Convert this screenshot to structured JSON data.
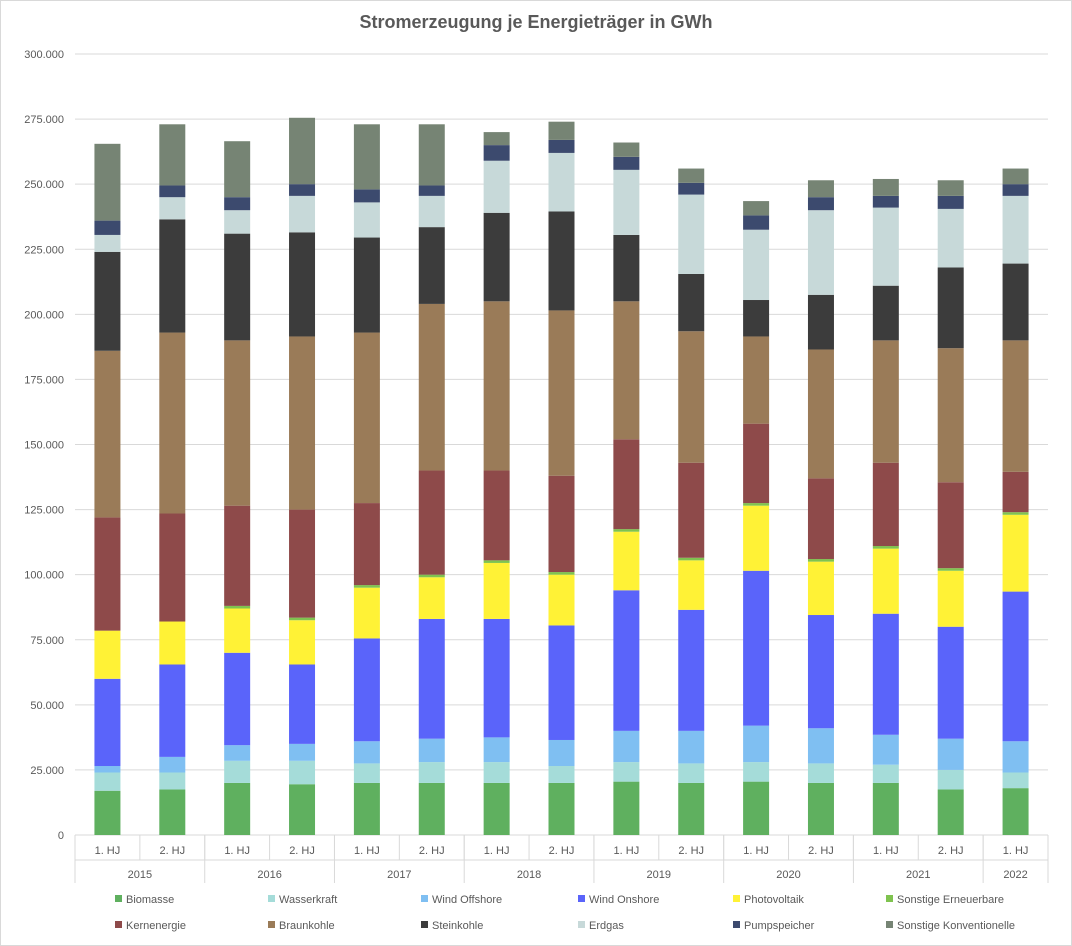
{
  "chart_data": {
    "type": "bar",
    "stacked": true,
    "title": "Stromerzeugung  je Energieträger in GWh",
    "xlabel": "",
    "ylabel": "",
    "ylim": [
      0,
      300000
    ],
    "y_ticks": [
      "0",
      "25.000",
      "50.000",
      "75.000",
      "100.000",
      "125.000",
      "150.000",
      "175.000",
      "200.000",
      "225.000",
      "250.000",
      "275.000",
      "300.000"
    ],
    "grid": true,
    "legend_position": "bottom",
    "categories": [
      "1. HJ",
      "2. HJ",
      "1. HJ",
      "2. HJ",
      "1. HJ",
      "2. HJ",
      "1. HJ",
      "2. HJ",
      "1. HJ",
      "2. HJ",
      "1. HJ",
      "2. HJ",
      "1. HJ",
      "2. HJ",
      "1. HJ"
    ],
    "groups": [
      {
        "label": "2015",
        "count": 2
      },
      {
        "label": "2016",
        "count": 2
      },
      {
        "label": "2017",
        "count": 2
      },
      {
        "label": "2018",
        "count": 2
      },
      {
        "label": "2019",
        "count": 2
      },
      {
        "label": "2020",
        "count": 2
      },
      {
        "label": "2021",
        "count": 2
      },
      {
        "label": "2022",
        "count": 1
      }
    ],
    "series": [
      {
        "name": "Biomasse",
        "color": "#5fb05f",
        "values": [
          17000,
          17500,
          20000,
          19500,
          20000,
          20000,
          20000,
          20000,
          20500,
          20000,
          20500,
          20000,
          20000,
          17500,
          18000
        ]
      },
      {
        "name": "Wasserkraft",
        "color": "#a5dcd9",
        "values": [
          7000,
          6500,
          8500,
          9000,
          7500,
          8000,
          8000,
          6500,
          7500,
          7500,
          7500,
          7500,
          7000,
          7500,
          6000
        ]
      },
      {
        "name": "Wind Offshore",
        "color": "#7fbff2",
        "values": [
          2500,
          6000,
          6000,
          6500,
          8500,
          9000,
          9500,
          10000,
          12000,
          12500,
          14000,
          13500,
          11500,
          12000,
          12000
        ]
      },
      {
        "name": "Wind Onshore",
        "color": "#5a64fa",
        "values": [
          33500,
          35500,
          35500,
          30500,
          39500,
          46000,
          45500,
          44000,
          54000,
          46500,
          59500,
          43500,
          46500,
          43000,
          57500
        ]
      },
      {
        "name": "Photovoltaik",
        "color": "#fff236",
        "values": [
          18500,
          16500,
          17000,
          17000,
          19500,
          16000,
          21500,
          19500,
          22500,
          19000,
          25000,
          20500,
          25000,
          21500,
          29500
        ]
      },
      {
        "name": "Sonstige Erneuerbare",
        "color": "#7fc34f",
        "values": [
          0,
          0,
          1000,
          1000,
          1000,
          1000,
          1000,
          1000,
          1000,
          1000,
          1000,
          1000,
          1000,
          1000,
          1000
        ]
      },
      {
        "name": "Kernenergie",
        "color": "#8e4a4a",
        "values": [
          43500,
          41500,
          38500,
          41500,
          31500,
          40000,
          34500,
          37000,
          34500,
          36500,
          30500,
          31000,
          32000,
          33000,
          15500
        ]
      },
      {
        "name": "Braunkohle",
        "color": "#9a7b58",
        "values": [
          64000,
          69500,
          63500,
          66500,
          65500,
          64000,
          65000,
          63500,
          53000,
          50500,
          33500,
          49500,
          47000,
          51500,
          50500
        ]
      },
      {
        "name": "Steinkohle",
        "color": "#3c3c3c",
        "values": [
          38000,
          43500,
          41000,
          40000,
          36500,
          29500,
          34000,
          38000,
          25500,
          22000,
          14000,
          21000,
          21000,
          31000,
          29500
        ]
      },
      {
        "name": "Erdgas",
        "color": "#c7d9d9",
        "values": [
          6500,
          8500,
          9000,
          14000,
          13500,
          12000,
          20000,
          22500,
          25000,
          30500,
          27000,
          32500,
          30000,
          22500,
          26000
        ]
      },
      {
        "name": "Pumpspeicher",
        "color": "#3c4a6e",
        "values": [
          5500,
          4500,
          5000,
          4500,
          5000,
          4000,
          6000,
          5000,
          5000,
          4500,
          5500,
          5000,
          4500,
          5000,
          4500
        ]
      },
      {
        "name": "Sonstige Konventionelle",
        "color": "#768474",
        "values": [
          29500,
          23500,
          21500,
          25500,
          25000,
          23500,
          5000,
          7000,
          5500,
          5500,
          5500,
          6500,
          6500,
          6000,
          6000
        ]
      }
    ]
  }
}
